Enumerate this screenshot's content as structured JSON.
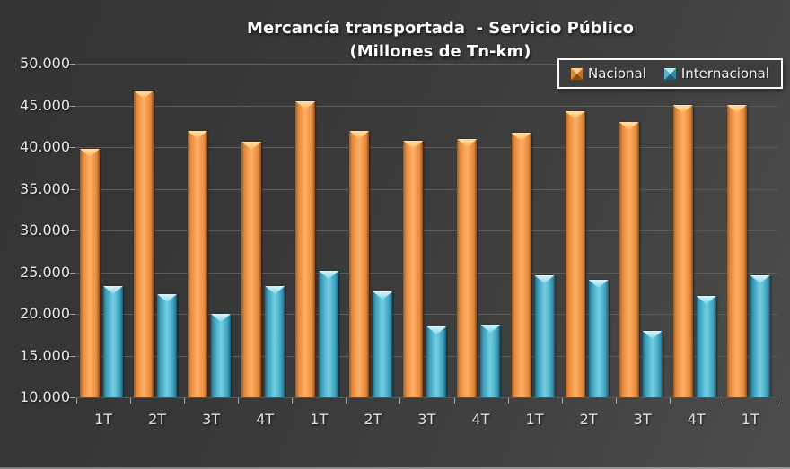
{
  "title": "Mercancía transportada  - Servicio Público",
  "subtitle": "(Millones de Tn-km)",
  "legend": {
    "items": [
      {
        "label": "Nacional",
        "color": "#f79646"
      },
      {
        "label": "Internacional",
        "color": "#4bacc6"
      }
    ]
  },
  "chart_data": {
    "type": "bar",
    "title": "Mercancía transportada  - Servicio Público",
    "subtitle": "(Millones de Tn-km)",
    "categories": [
      "1T",
      "2T",
      "3T",
      "4T",
      "1T",
      "2T",
      "3T",
      "4T",
      "1T",
      "2T",
      "3T",
      "4T",
      "1T"
    ],
    "series": [
      {
        "name": "Nacional",
        "color": "#f79646",
        "values": [
          39800,
          46800,
          41900,
          40600,
          45500,
          41900,
          40800,
          41000,
          41700,
          44300,
          43000,
          45000,
          45100
        ]
      },
      {
        "name": "Internacional",
        "color": "#4bacc6",
        "values": [
          23300,
          22400,
          20000,
          23300,
          25200,
          22700,
          18500,
          18700,
          24600,
          24100,
          18000,
          22200,
          24600
        ]
      }
    ],
    "ylim": [
      10000,
      50000
    ],
    "ytick_step": 5000,
    "ytick_labels": [
      "10.000",
      "15.000",
      "20.000",
      "25.000",
      "30.000",
      "35.000",
      "40.000",
      "45.000",
      "50.000"
    ],
    "xlabel": "",
    "ylabel": "",
    "grid": true,
    "legend_position": "top-right",
    "background": "#3c3c3c"
  }
}
